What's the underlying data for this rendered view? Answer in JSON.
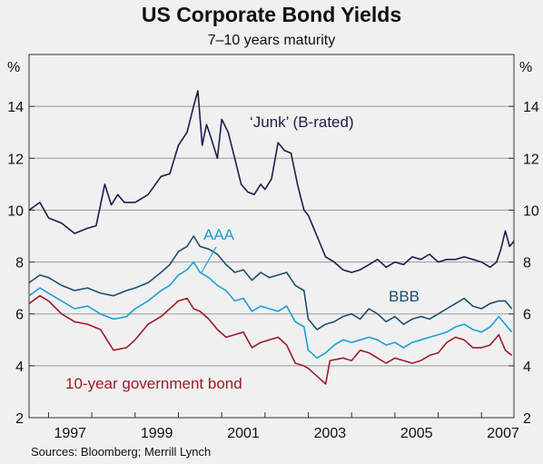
{
  "chart_data": {
    "type": "line",
    "title": "US Corporate Bond Yields",
    "subtitle": "7–10 years maturity",
    "sources": "Sources: Bloomberg; Merrill Lynch",
    "left_unit": "%",
    "right_unit": "%",
    "x_tick_labels": [
      "1997",
      "1999",
      "2001",
      "2003",
      "2005",
      "2007"
    ],
    "x_tick_values": [
      1997,
      1999,
      2001,
      2003,
      2005,
      2007
    ],
    "xlim": [
      1996.55,
      2007.75
    ],
    "ylim": [
      2,
      16
    ],
    "y_tick_labels": [
      "2",
      "4",
      "6",
      "8",
      "10",
      "12",
      "14"
    ],
    "y_tick_values": [
      2,
      4,
      6,
      8,
      10,
      12,
      14
    ],
    "grid": "horizontal",
    "series": [
      {
        "name": "'Junk' (B-rated)",
        "color": "#1b1f4a",
        "x": [
          1996.55,
          1996.8,
          1997.0,
          1997.3,
          1997.6,
          1997.9,
          1998.1,
          1998.3,
          1998.45,
          1998.6,
          1998.75,
          1999.0,
          1999.3,
          1999.6,
          1999.8,
          2000.0,
          2000.2,
          2000.35,
          2000.45,
          2000.55,
          2000.65,
          2000.75,
          2000.9,
          2001.0,
          2001.15,
          2001.3,
          2001.45,
          2001.6,
          2001.75,
          2001.9,
          2002.0,
          2002.15,
          2002.3,
          2002.45,
          2002.6,
          2002.75,
          2002.9,
          2003.0,
          2003.2,
          2003.4,
          2003.6,
          2003.8,
          2004.0,
          2004.2,
          2004.4,
          2004.6,
          2004.8,
          2005.0,
          2005.2,
          2005.4,
          2005.6,
          2005.8,
          2006.0,
          2006.2,
          2006.4,
          2006.6,
          2006.8,
          2007.0,
          2007.2,
          2007.35,
          2007.45,
          2007.55,
          2007.65,
          2007.75
        ],
        "values": [
          10.0,
          10.3,
          9.7,
          9.5,
          9.1,
          9.3,
          9.4,
          11.0,
          10.2,
          10.6,
          10.3,
          10.3,
          10.6,
          11.3,
          11.4,
          12.5,
          13.0,
          14.0,
          14.6,
          12.5,
          13.3,
          12.8,
          12.0,
          13.5,
          13.0,
          12.0,
          11.0,
          10.7,
          10.6,
          11.0,
          10.8,
          11.2,
          12.6,
          12.3,
          12.2,
          11.0,
          10.0,
          9.8,
          9.0,
          8.2,
          8.0,
          7.7,
          7.6,
          7.7,
          7.9,
          8.1,
          7.8,
          8.0,
          7.9,
          8.2,
          8.1,
          8.3,
          8.0,
          8.1,
          8.1,
          8.2,
          8.1,
          8.0,
          7.8,
          8.0,
          8.5,
          9.2,
          8.6,
          8.8
        ]
      },
      {
        "name": "BBB",
        "color": "#1d4f6e",
        "x": [
          1996.55,
          1996.8,
          1997.0,
          1997.3,
          1997.6,
          1997.9,
          1998.2,
          1998.5,
          1998.8,
          1999.0,
          1999.3,
          1999.6,
          1999.8,
          2000.0,
          2000.2,
          2000.35,
          2000.5,
          2000.7,
          2000.9,
          2001.1,
          2001.3,
          2001.5,
          2001.7,
          2001.9,
          2002.1,
          2002.3,
          2002.5,
          2002.7,
          2002.9,
          2003.0,
          2003.2,
          2003.4,
          2003.6,
          2003.8,
          2004.0,
          2004.2,
          2004.4,
          2004.6,
          2004.8,
          2005.0,
          2005.2,
          2005.4,
          2005.6,
          2005.8,
          2006.0,
          2006.2,
          2006.4,
          2006.6,
          2006.8,
          2007.0,
          2007.2,
          2007.4,
          2007.55,
          2007.7
        ],
        "values": [
          7.2,
          7.5,
          7.4,
          7.1,
          6.9,
          7.0,
          6.8,
          6.7,
          6.9,
          7.0,
          7.2,
          7.6,
          7.9,
          8.4,
          8.6,
          9.0,
          8.6,
          8.5,
          8.3,
          7.9,
          7.6,
          7.7,
          7.3,
          7.6,
          7.4,
          7.5,
          7.6,
          7.1,
          6.9,
          5.8,
          5.4,
          5.6,
          5.7,
          5.9,
          6.0,
          5.8,
          6.2,
          6.0,
          5.7,
          5.9,
          5.6,
          5.8,
          5.9,
          5.8,
          6.0,
          6.2,
          6.4,
          6.6,
          6.3,
          6.2,
          6.4,
          6.5,
          6.5,
          6.2
        ]
      },
      {
        "name": "AAA",
        "color": "#1c9fd6",
        "x": [
          1996.55,
          1996.8,
          1997.0,
          1997.3,
          1997.6,
          1997.9,
          1998.2,
          1998.5,
          1998.8,
          1999.0,
          1999.3,
          1999.6,
          1999.8,
          2000.0,
          2000.2,
          2000.35,
          2000.5,
          2000.7,
          2000.9,
          2001.1,
          2001.3,
          2001.5,
          2001.7,
          2001.9,
          2002.1,
          2002.3,
          2002.5,
          2002.7,
          2002.9,
          2003.0,
          2003.2,
          2003.4,
          2003.6,
          2003.8,
          2004.0,
          2004.2,
          2004.4,
          2004.6,
          2004.8,
          2005.0,
          2005.2,
          2005.4,
          2005.6,
          2005.8,
          2006.0,
          2006.2,
          2006.4,
          2006.6,
          2006.8,
          2007.0,
          2007.2,
          2007.4,
          2007.55,
          2007.7
        ],
        "values": [
          6.7,
          7.0,
          6.8,
          6.5,
          6.2,
          6.3,
          6.0,
          5.8,
          5.9,
          6.2,
          6.5,
          6.9,
          7.1,
          7.5,
          7.7,
          8.0,
          7.6,
          7.4,
          7.1,
          6.9,
          6.5,
          6.6,
          6.1,
          6.3,
          6.2,
          6.1,
          6.3,
          5.7,
          5.5,
          4.6,
          4.3,
          4.5,
          4.8,
          5.0,
          4.9,
          5.0,
          5.1,
          5.0,
          4.8,
          4.9,
          4.7,
          4.9,
          5.0,
          5.1,
          5.2,
          5.3,
          5.5,
          5.6,
          5.4,
          5.3,
          5.5,
          5.9,
          5.6,
          5.3
        ]
      },
      {
        "name": "10-year government bond",
        "color": "#9c1c2a",
        "x": [
          1996.55,
          1996.8,
          1997.0,
          1997.3,
          1997.6,
          1997.9,
          1998.2,
          1998.5,
          1998.8,
          1999.0,
          1999.3,
          1999.6,
          1999.8,
          2000.0,
          2000.2,
          2000.35,
          2000.5,
          2000.7,
          2000.9,
          2001.1,
          2001.3,
          2001.5,
          2001.7,
          2001.9,
          2002.1,
          2002.3,
          2002.5,
          2002.7,
          2002.9,
          2003.0,
          2003.2,
          2003.4,
          2003.5,
          2003.8,
          2004.0,
          2004.2,
          2004.4,
          2004.6,
          2004.8,
          2005.0,
          2005.2,
          2005.4,
          2005.6,
          2005.8,
          2006.0,
          2006.2,
          2006.4,
          2006.6,
          2006.8,
          2007.0,
          2007.2,
          2007.4,
          2007.55,
          2007.7
        ],
        "values": [
          6.4,
          6.7,
          6.5,
          6.0,
          5.7,
          5.6,
          5.4,
          4.6,
          4.7,
          5.0,
          5.6,
          5.9,
          6.2,
          6.5,
          6.6,
          6.2,
          6.1,
          5.8,
          5.4,
          5.1,
          5.2,
          5.3,
          4.7,
          4.9,
          5.0,
          5.1,
          4.8,
          4.1,
          4.0,
          3.9,
          3.6,
          3.3,
          4.2,
          4.3,
          4.2,
          4.6,
          4.5,
          4.3,
          4.1,
          4.3,
          4.2,
          4.1,
          4.2,
          4.4,
          4.5,
          4.9,
          5.1,
          5.0,
          4.7,
          4.7,
          4.8,
          5.2,
          4.6,
          4.4
        ]
      }
    ],
    "annotations": [
      {
        "key": "junk",
        "text": "‘Junk’ (B-rated)",
        "color": "#1b1f4a"
      },
      {
        "key": "aaa",
        "text": "AAA",
        "color": "#1c9fd6"
      },
      {
        "key": "bbb",
        "text": "BBB",
        "color": "#1d4f6e"
      },
      {
        "key": "gov",
        "text": "10-year government bond",
        "color": "#9c1c2a"
      }
    ]
  }
}
